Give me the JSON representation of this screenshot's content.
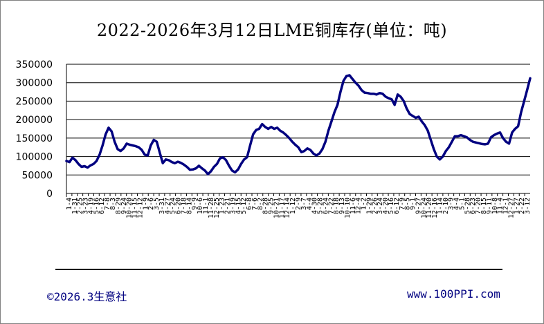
{
  "title": "2022-2026年3月12日LME铜库存(单位：吨)",
  "footer": {
    "copyright": "©2026.3生意社",
    "website": "www.100PPI.com"
  },
  "colors": {
    "line": "#000080",
    "grid": "#000000",
    "footer_text": "#000080"
  },
  "chart_data": {
    "type": "line",
    "title": "2022-2026年3月12日LME铜库存(单位：吨)",
    "xlabel": "",
    "ylabel": "",
    "ylim": [
      0,
      350000
    ],
    "yticks": [
      0,
      50000,
      100000,
      150000,
      200000,
      250000,
      300000,
      350000
    ],
    "grid": "horizontal",
    "legend": "none",
    "x_tick_labels": [
      "1-4",
      "1-31",
      "2-25",
      "3-23",
      "4-19",
      "5-16",
      "6-12",
      "7-8",
      "8-3",
      "8-29",
      "9-24",
      "10-20",
      "11-15",
      "12-12",
      "1-9",
      "2-6",
      "3-5",
      "3-31",
      "4-27",
      "5-24",
      "6-20",
      "7-18",
      "8-14",
      "9-9",
      "10-6",
      "11-1",
      "11-28",
      "12-25",
      "1-23",
      "2-21",
      "3-19",
      "4-15",
      "5-12",
      "6-8",
      "7-6",
      "8-2",
      "8-28",
      "9-25",
      "10-21",
      "11-17",
      "12-14",
      "1-12",
      "2-9",
      "3-7",
      "4-4",
      "4-30",
      "5-28",
      "6-24",
      "7-22",
      "8-18",
      "9-13",
      "10-10",
      "11-6",
      "12-4",
      "1-2",
      "1-29",
      "2-26",
      "3-24",
      "4-20",
      "5-16",
      "6-12",
      "7-9",
      "8-5",
      "9-1",
      "9-27",
      "10-24",
      "11-20",
      "12-16",
      "1-14",
      "2-10",
      "3-9",
      "4-4",
      "5-1",
      "5-28",
      "6-23",
      "7-20",
      "8-15",
      "9-11",
      "10-8",
      "11-4",
      "12-1",
      "12-27",
      "1-27",
      "2-22",
      "3-12"
    ],
    "series": [
      {
        "values": [
          88000,
          85000,
          97000,
          90000,
          80000,
          72000,
          74000,
          70000,
          76000,
          80000,
          88000,
          105000,
          130000,
          160000,
          178000,
          168000,
          140000,
          120000,
          115000,
          122000,
          135000,
          132000,
          130000,
          128000,
          125000,
          118000,
          105000,
          103000,
          130000,
          145000,
          140000,
          110000,
          82000,
          92000,
          90000,
          85000,
          82000,
          86000,
          83000,
          78000,
          72000,
          64000,
          65000,
          68000,
          75000,
          68000,
          62000,
          52000,
          60000,
          72000,
          80000,
          95000,
          98000,
          90000,
          75000,
          62000,
          57000,
          65000,
          80000,
          92000,
          98000,
          130000,
          160000,
          172000,
          175000,
          188000,
          180000,
          175000,
          180000,
          175000,
          178000,
          170000,
          165000,
          158000,
          150000,
          140000,
          132000,
          125000,
          112000,
          115000,
          122000,
          118000,
          108000,
          103000,
          108000,
          120000,
          140000,
          170000,
          195000,
          220000,
          240000,
          275000,
          305000,
          318000,
          320000,
          310000,
          300000,
          292000,
          280000,
          273000,
          272000,
          270000,
          270000,
          268000,
          272000,
          270000,
          262000,
          258000,
          255000,
          240000,
          268000,
          262000,
          250000,
          230000,
          215000,
          210000,
          205000,
          208000,
          195000,
          185000,
          170000,
          145000,
          120000,
          100000,
          92000,
          100000,
          115000,
          125000,
          140000,
          155000,
          155000,
          158000,
          155000,
          152000,
          145000,
          140000,
          138000,
          136000,
          134000,
          133000,
          135000,
          152000,
          158000,
          162000,
          165000,
          150000,
          140000,
          135000,
          165000,
          175000,
          182000,
          220000,
          250000,
          280000,
          312000
        ]
      }
    ]
  }
}
